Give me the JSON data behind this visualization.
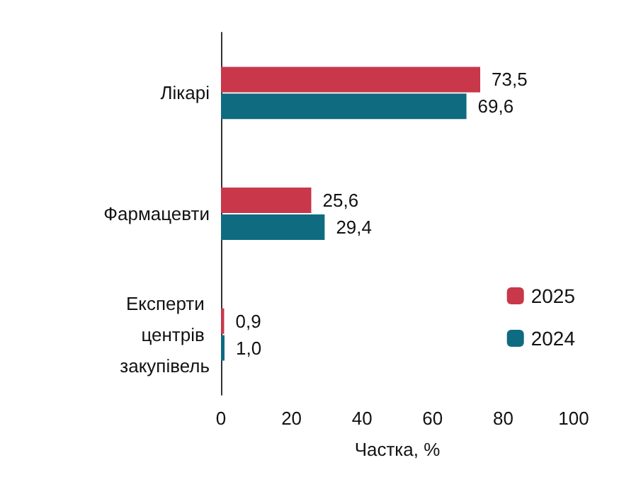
{
  "chart_data": {
    "type": "bar",
    "orientation": "horizontal",
    "xlabel": "Частка, %",
    "categories": [
      "Лікарі",
      "Фармацевти",
      "Експерти центрів закупівель"
    ],
    "series": [
      {
        "name": "2025",
        "color": "#c8374a",
        "values": [
          73.5,
          25.6,
          0.9
        ],
        "value_labels": [
          "73,5",
          "25,6",
          "0,9"
        ]
      },
      {
        "name": "2024",
        "color": "#0e6b80",
        "values": [
          69.6,
          29.4,
          1.0
        ],
        "value_labels": [
          "69,6",
          "29,4",
          "1,0"
        ]
      }
    ],
    "xlim": [
      0,
      100
    ],
    "xticks": [
      0,
      20,
      40,
      60,
      80,
      100
    ],
    "grid": false,
    "legend": "bottom right"
  }
}
